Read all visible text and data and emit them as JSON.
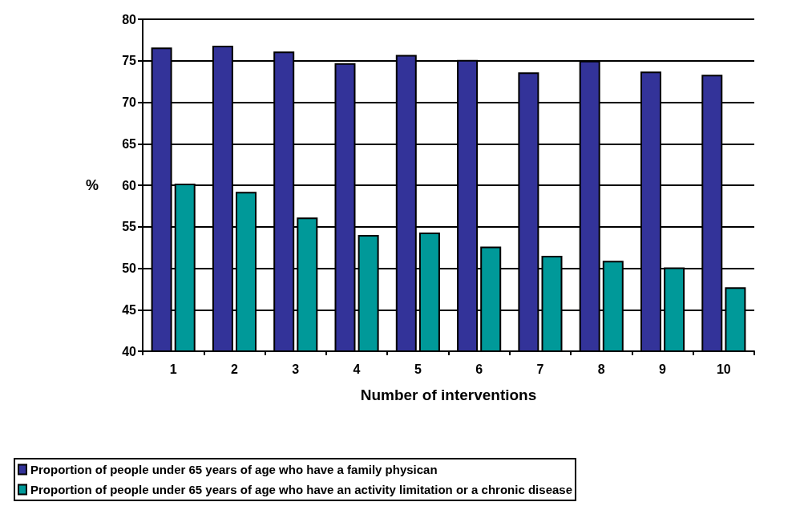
{
  "chart_data": {
    "type": "bar",
    "xlabel": "Number of interventions",
    "ylabel": "%",
    "categories": [
      "1",
      "2",
      "3",
      "4",
      "5",
      "6",
      "7",
      "8",
      "9",
      "10"
    ],
    "series": [
      {
        "name": "Proportion of people under 65 years of age who have a family physican",
        "color": "#333399",
        "values": [
          76.6,
          76.8,
          76.1,
          74.7,
          75.7,
          75.1,
          73.6,
          75.0,
          73.7,
          73.3
        ]
      },
      {
        "name": "Proportion of people under 65 years of age who have an activity limitation or a chronic disease",
        "color": "#009999",
        "values": [
          60.2,
          59.2,
          56.1,
          54.0,
          54.3,
          52.6,
          51.5,
          50.9,
          50.1,
          47.7
        ]
      }
    ],
    "ylim": [
      40,
      80
    ],
    "yticks": [
      40,
      45,
      50,
      55,
      60,
      65,
      70,
      75,
      80
    ],
    "grid": "y",
    "legend": "bottom left"
  }
}
